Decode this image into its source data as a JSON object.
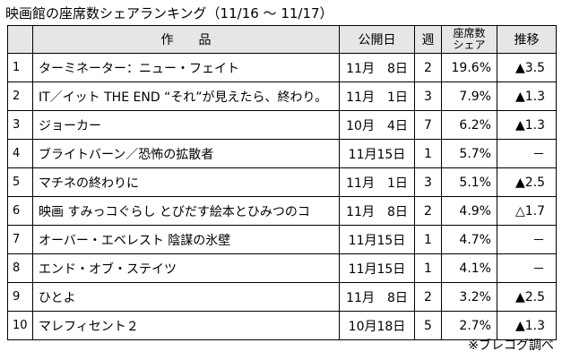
{
  "title": "映画館の座席数シェアランキング（11/16 ～ 11/17）",
  "headers": {
    "rank": "",
    "film": "作　　品",
    "release": "公開日",
    "week": "週",
    "share_line1": "座席数",
    "share_line2": "シェア",
    "trend": "推移"
  },
  "rows": [
    {
      "rank": "1",
      "film": "ターミネーター：ニュー・フェイト",
      "release": "11月　8日",
      "week": "2",
      "share": "19.6%",
      "trend": "▲3.5"
    },
    {
      "rank": "2",
      "film": "IT／イット THE END “それ”が見えたら、終わり。",
      "release": "11月　1日",
      "week": "3",
      "share": "7.9%",
      "trend": "▲1.3"
    },
    {
      "rank": "3",
      "film": "ジョーカー",
      "release": "10月　4日",
      "week": "7",
      "share": "6.2%",
      "trend": "▲1.3"
    },
    {
      "rank": "4",
      "film": "ブライトバーン／恐怖の拡散者",
      "release": "11月15日",
      "week": "1",
      "share": "5.7%",
      "trend": "－"
    },
    {
      "rank": "5",
      "film": "マチネの終わりに",
      "release": "11月　1日",
      "week": "3",
      "share": "5.1%",
      "trend": "▲2.5"
    },
    {
      "rank": "6",
      "film": "映画 すみっコぐらし とびだす絵本とひみつのコ",
      "release": "11月　8日",
      "week": "2",
      "share": "4.9%",
      "trend": "△1.7"
    },
    {
      "rank": "7",
      "film": "オーバー・エベレスト 陰謀の氷壁",
      "release": "11月15日",
      "week": "1",
      "share": "4.7%",
      "trend": "－"
    },
    {
      "rank": "8",
      "film": "エンド・オブ・ステイツ",
      "release": "11月15日",
      "week": "1",
      "share": "4.1%",
      "trend": "－"
    },
    {
      "rank": "9",
      "film": "ひとよ",
      "release": "11月　8日",
      "week": "2",
      "share": "3.2%",
      "trend": "▲2.5"
    },
    {
      "rank": "10",
      "film": "マレフィセント２",
      "release": "10月18日",
      "week": "5",
      "share": "2.7%",
      "trend": "▲1.3"
    }
  ],
  "footnote": "※ブレコグ調べ"
}
